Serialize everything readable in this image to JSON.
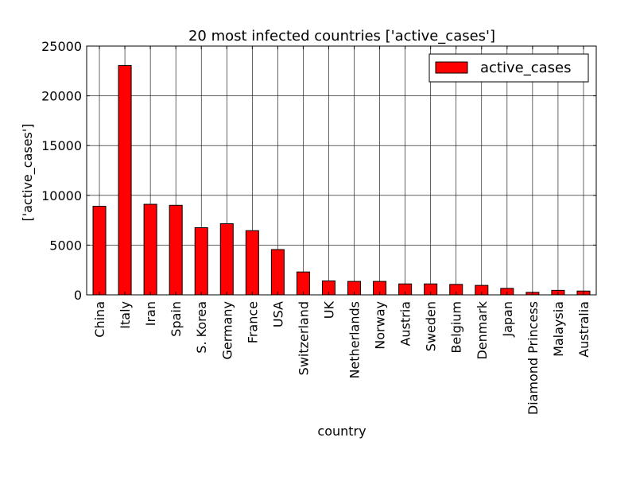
{
  "chart_data": {
    "type": "bar",
    "title": "20 most infected countries ['active_cases']",
    "xlabel": "country",
    "ylabel": "['active_cases']",
    "ylim": [
      0,
      25000
    ],
    "yticks": [
      "0",
      "5000",
      "10000",
      "15000",
      "20000",
      "25000"
    ],
    "grid": true,
    "legend_position": "top-right",
    "categories": [
      "China",
      "Italy",
      "Iran",
      "Spain",
      "S. Korea",
      "Germany",
      "France",
      "USA",
      "Switzerland",
      "UK",
      "Netherlands",
      "Norway",
      "Austria",
      "Sweden",
      "Belgium",
      "Denmark",
      "Japan",
      "Diamond Princess",
      "Malaysia",
      "Australia"
    ],
    "series": [
      {
        "name": "active_cases",
        "color": "#ff0000",
        "values": [
          8900,
          23050,
          9100,
          9000,
          6750,
          7150,
          6450,
          4550,
          2300,
          1400,
          1350,
          1350,
          1100,
          1100,
          1050,
          950,
          650,
          250,
          450,
          380
        ]
      }
    ]
  }
}
